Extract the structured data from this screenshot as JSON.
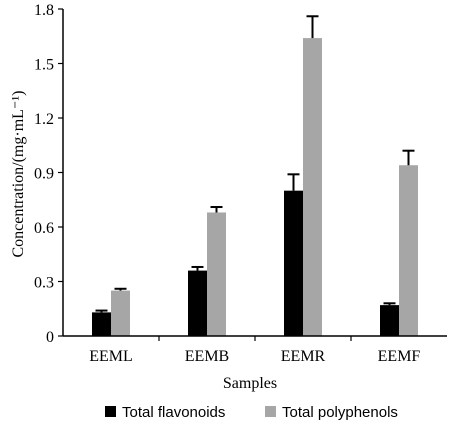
{
  "chart_data": {
    "type": "bar",
    "xlabel": "Samples",
    "ylabel": "Concentration/(mg·mL⁻¹)",
    "ylim": [
      0,
      1.8
    ],
    "yticks": [
      "0",
      "0.3",
      "0.6",
      "0.9",
      "1.2",
      "1.5",
      "1.8"
    ],
    "categories": [
      "EEML",
      "EEMB",
      "EEMR",
      "EEMF"
    ],
    "grid": false,
    "legend_position": "bottom",
    "series": [
      {
        "name": "Total flavonoids",
        "color": "#000000",
        "values": [
          0.13,
          0.36,
          0.8,
          0.17
        ],
        "errors": [
          0.01,
          0.02,
          0.09,
          0.01
        ]
      },
      {
        "name": "Total polyphenols",
        "color": "#a6a6a6",
        "values": [
          0.25,
          0.68,
          1.64,
          0.94
        ],
        "errors": [
          0.01,
          0.03,
          0.12,
          0.08
        ]
      }
    ]
  }
}
